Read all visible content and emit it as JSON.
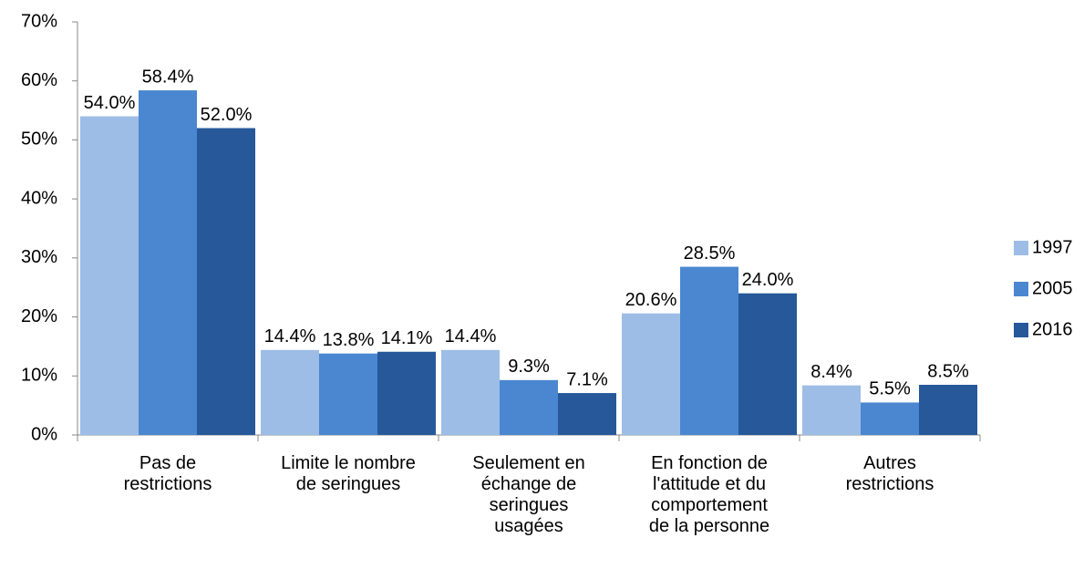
{
  "chart_data": {
    "type": "bar",
    "categories": [
      "Pas de\nrestrictions",
      "Limite le nombre\nde seringues",
      "Seulement en\néchange de\nseringues\nusagées",
      "En fonction de\nl'attitude et du\ncomportement\nde la personne",
      "Autres\nrestrictions"
    ],
    "series": [
      {
        "name": "1997",
        "color": "#9dbde6",
        "values": [
          54.0,
          14.4,
          14.4,
          20.6,
          8.4
        ],
        "value_labels": [
          "54.0%",
          "14.4%",
          "14.4%",
          "20.6%",
          "8.4%"
        ]
      },
      {
        "name": "2005",
        "color": "#4a87d0",
        "values": [
          58.4,
          13.8,
          9.3,
          28.5,
          5.5
        ],
        "value_labels": [
          "58.4%",
          "13.8%",
          "9.3%",
          "28.5%",
          "5.5%"
        ]
      },
      {
        "name": "2016",
        "color": "#26589a",
        "values": [
          52.0,
          14.1,
          7.1,
          24.0,
          8.5
        ],
        "value_labels": [
          "52.0%",
          "14.1%",
          "7.1%",
          "24.0%",
          "8.5%"
        ]
      }
    ],
    "ylim": [
      0,
      70
    ],
    "yticks": [
      {
        "value": 0,
        "label": "0%"
      },
      {
        "value": 10,
        "label": "10%"
      },
      {
        "value": 20,
        "label": "20%"
      },
      {
        "value": 30,
        "label": "30%"
      },
      {
        "value": 40,
        "label": "40%"
      },
      {
        "value": 50,
        "label": "50%"
      },
      {
        "value": 60,
        "label": "60%"
      },
      {
        "value": 70,
        "label": "70%"
      }
    ],
    "legend": "right"
  }
}
